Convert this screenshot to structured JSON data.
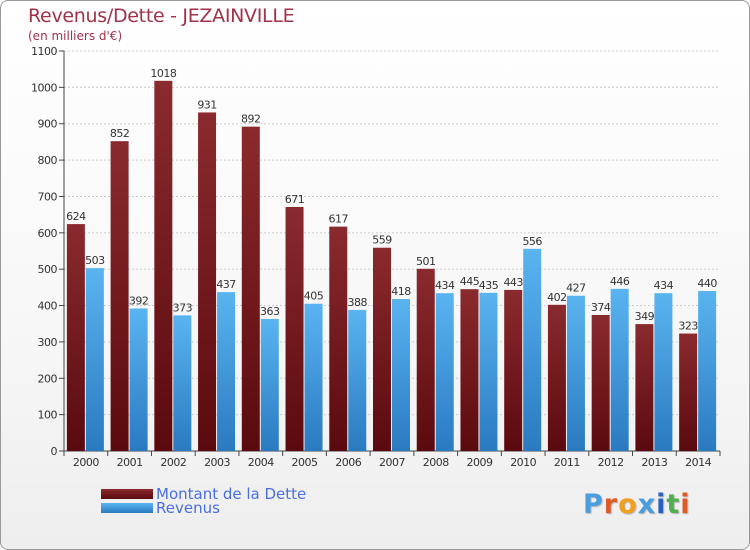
{
  "title": "Revenus/Dette - JEZAINVILLE",
  "subtitle": "(en milliers d'€)",
  "legend": {
    "debt_label": "Montant de la Dette",
    "revenue_label": "Revenus"
  },
  "logo": {
    "letters": [
      "P",
      "r",
      "o",
      "x",
      "i",
      "t",
      "i"
    ]
  },
  "colors": {
    "debt": "#7a1a1e",
    "debt_light": "#9a3a3e",
    "revenue": "#3a9ae0",
    "revenue_light": "#5ab4f0",
    "text": "#a0324a",
    "legend_text": "#4a6ee0",
    "logo": [
      "#4a9ee0",
      "#e05a28",
      "#f0a020",
      "#4a9ee0",
      "#2a60c0",
      "#50b050",
      "#e05a28"
    ]
  },
  "chart_data": {
    "type": "bar",
    "title": "Revenus/Dette - JEZAINVILLE",
    "subtitle": "(en milliers d'€)",
    "categories": [
      "2000",
      "2001",
      "2002",
      "2003",
      "2004",
      "2005",
      "2006",
      "2007",
      "2008",
      "2009",
      "2010",
      "2011",
      "2012",
      "2013",
      "2014"
    ],
    "series": [
      {
        "name": "Montant de la Dette",
        "values": [
          624,
          852,
          1018,
          931,
          892,
          671,
          617,
          559,
          501,
          445,
          443,
          402,
          374,
          349,
          323
        ]
      },
      {
        "name": "Revenus",
        "values": [
          503,
          392,
          373,
          437,
          363,
          405,
          388,
          418,
          434,
          435,
          556,
          427,
          446,
          434,
          440
        ]
      }
    ],
    "ylim": [
      0,
      1100
    ],
    "yticks": [
      0,
      100,
      200,
      300,
      400,
      500,
      600,
      700,
      800,
      900,
      1000,
      1100
    ],
    "grid": true,
    "legend_position": "bottom-left"
  }
}
